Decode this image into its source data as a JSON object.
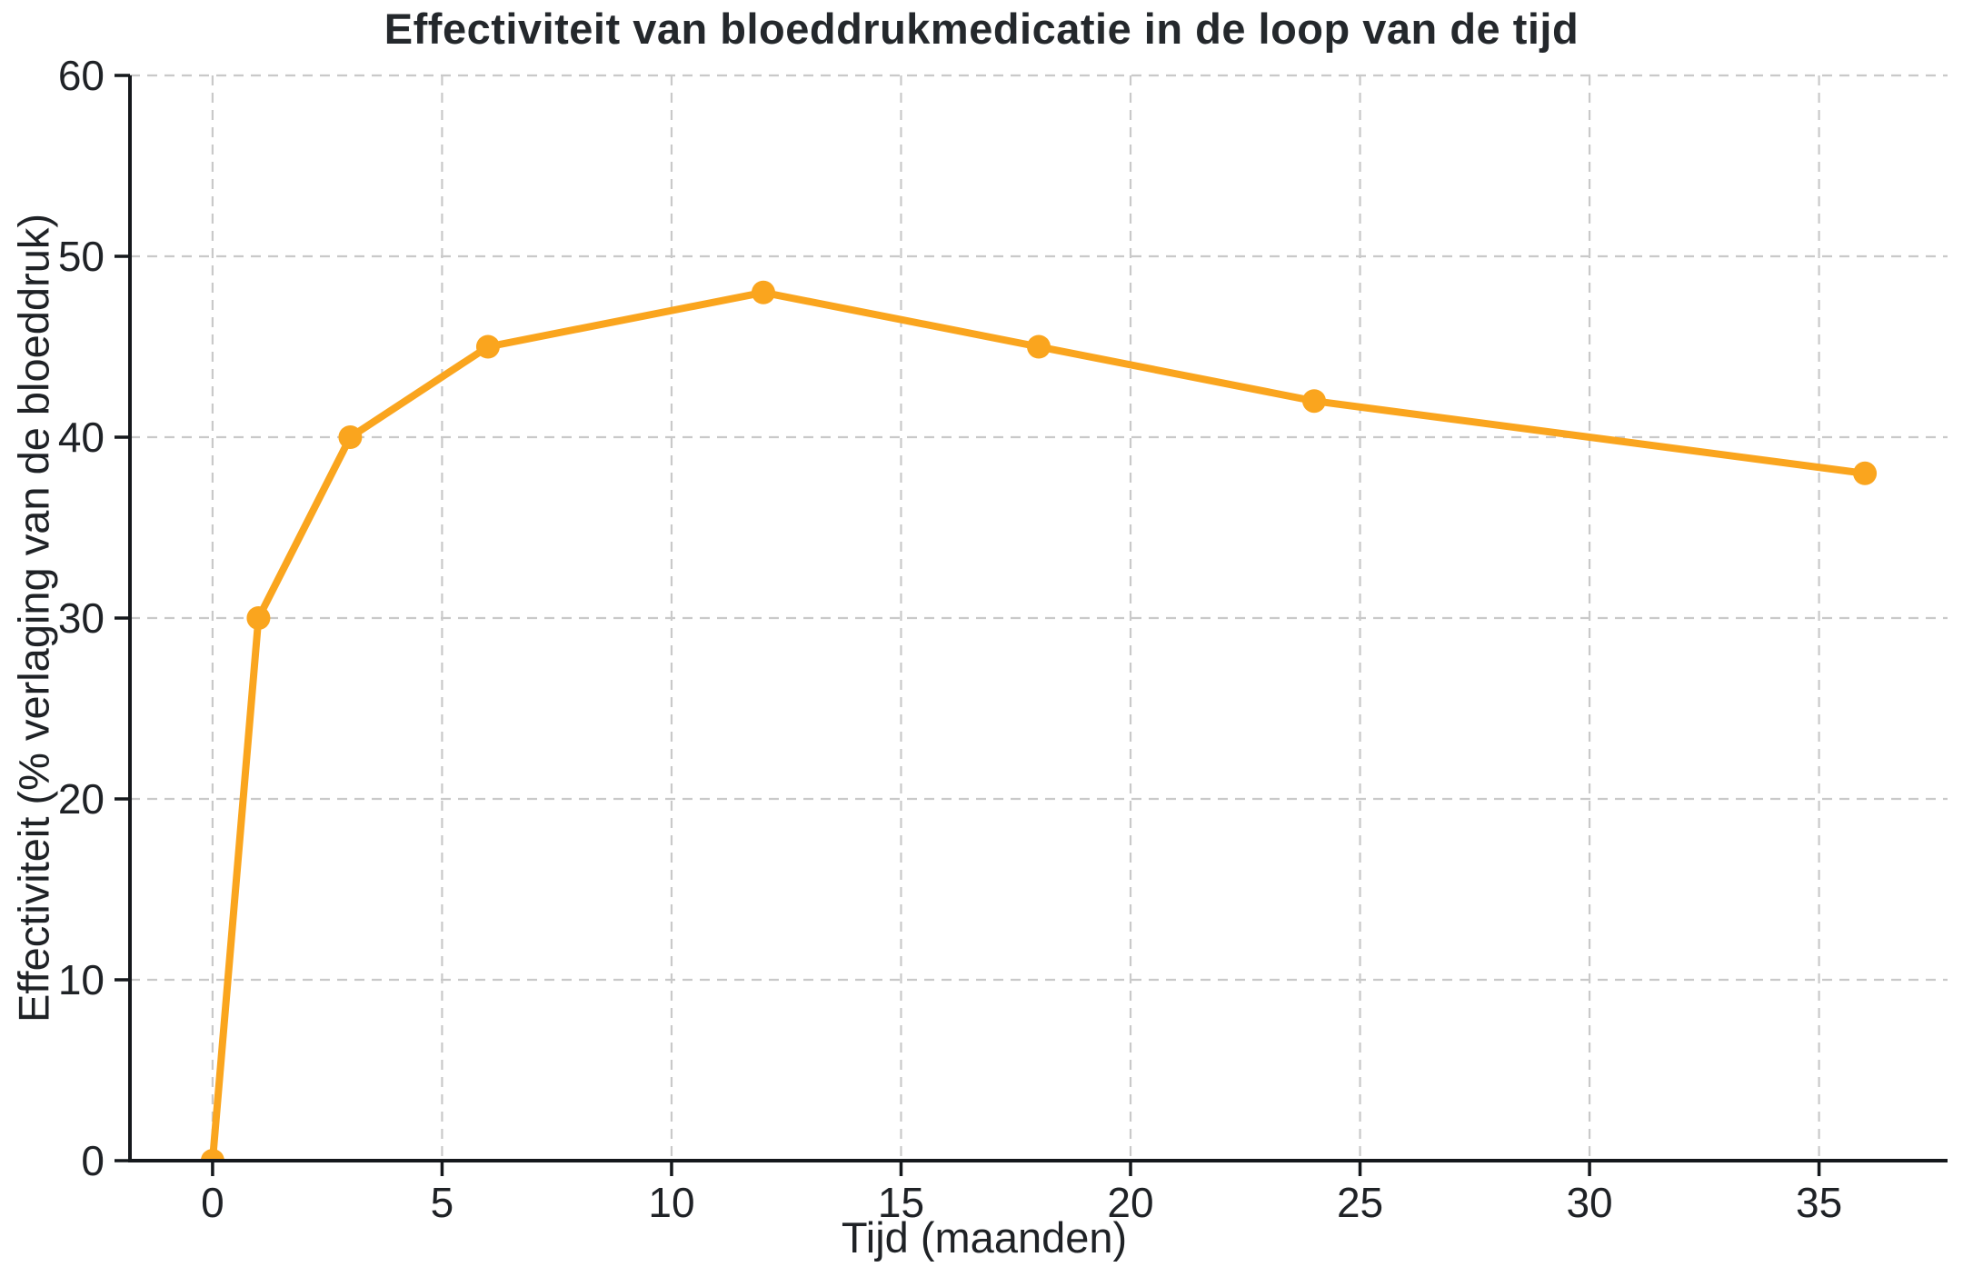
{
  "figure": {
    "background_color": "#ffffff",
    "title": "Effectiviteit van bloeddrukmedicatie in de loop van de tijd"
  },
  "chart_data": {
    "type": "line",
    "title": "Effectiviteit van bloeddrukmedicatie in de loop van de tijd",
    "xlabel": "Tijd (maanden)",
    "ylabel": "Effectiviteit (% verlaging van de bloeddruk)",
    "x": [
      0,
      1,
      3,
      6,
      12,
      18,
      24,
      36
    ],
    "y": [
      0,
      30,
      40,
      45,
      48,
      45,
      42,
      38
    ],
    "points": [
      {
        "maand": 0,
        "effectiviteit": 0
      },
      {
        "maand": 1,
        "effectiviteit": 30
      },
      {
        "maand": 3,
        "effectiviteit": 40
      },
      {
        "maand": 6,
        "effectiviteit": 45
      },
      {
        "maand": 12,
        "effectiviteit": 48
      },
      {
        "maand": 18,
        "effectiviteit": 45
      },
      {
        "maand": 24,
        "effectiviteit": 42
      },
      {
        "maand": 36,
        "effectiviteit": 38
      }
    ],
    "xticks": [
      0,
      5,
      10,
      15,
      20,
      25,
      30,
      35
    ],
    "yticks": [
      0,
      10,
      20,
      30,
      40,
      50,
      60
    ],
    "xlim": [
      -1.8,
      37.8
    ],
    "ylim": [
      0,
      60
    ],
    "grid": true,
    "grid_style": "dashed",
    "legend": false,
    "marker": "circle",
    "colors": {
      "line": "#FAA51E",
      "marker": "#FAA51E",
      "grid": "#c9c9c9",
      "axis": "#15181c",
      "tick_text": "#1f2226",
      "title_text": "#24282c"
    }
  }
}
